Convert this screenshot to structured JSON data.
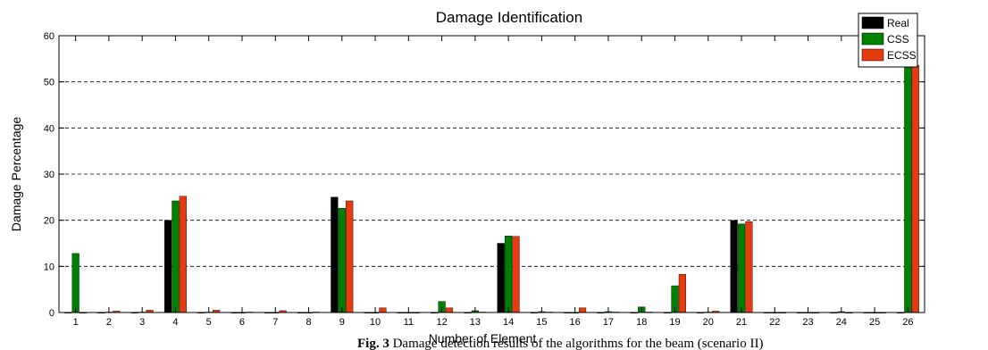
{
  "chart_data": {
    "type": "bar",
    "title": "Damage Identification",
    "xlabel": "Number of Element",
    "ylabel": "Damage Percentage",
    "ylim": [
      0,
      60
    ],
    "yticks": [
      0,
      10,
      20,
      30,
      40,
      50,
      60
    ],
    "grid": "horizontal dashed",
    "legend_position": "top-right",
    "categories": [
      "1",
      "2",
      "3",
      "4",
      "5",
      "6",
      "7",
      "8",
      "9",
      "10",
      "11",
      "12",
      "13",
      "14",
      "15",
      "16",
      "17",
      "18",
      "19",
      "20",
      "21",
      "22",
      "23",
      "24",
      "25",
      "26"
    ],
    "series": [
      {
        "name": "Real",
        "color": "#000000",
        "values": [
          0,
          0,
          0,
          20,
          0,
          0,
          0,
          0,
          25,
          0,
          0,
          0,
          0,
          15,
          0,
          0,
          0,
          0,
          0,
          0,
          20,
          0,
          0,
          0,
          0,
          0
        ]
      },
      {
        "name": "CSS",
        "color": "#008000",
        "values": [
          12.8,
          0.1,
          0.1,
          24.2,
          0.1,
          0,
          0,
          0,
          22.6,
          0,
          0,
          2.4,
          0.4,
          16.6,
          0.2,
          0,
          0.2,
          1.2,
          5.8,
          0.1,
          19.2,
          0,
          0,
          0.2,
          0,
          54.7
        ]
      },
      {
        "name": "ECSS",
        "color": "#e53b0f",
        "values": [
          0,
          0.3,
          0.5,
          25.2,
          0.5,
          0.1,
          0.4,
          0.1,
          24.2,
          1,
          0,
          1,
          0.1,
          16.5,
          0.1,
          1,
          0.1,
          0.1,
          8.3,
          0.3,
          19.7,
          0,
          0,
          0,
          0,
          53.6
        ]
      }
    ]
  },
  "caption": {
    "label": "Fig. 3",
    "text": " Damage detection results of the algorithms for the beam (scenario II)"
  }
}
